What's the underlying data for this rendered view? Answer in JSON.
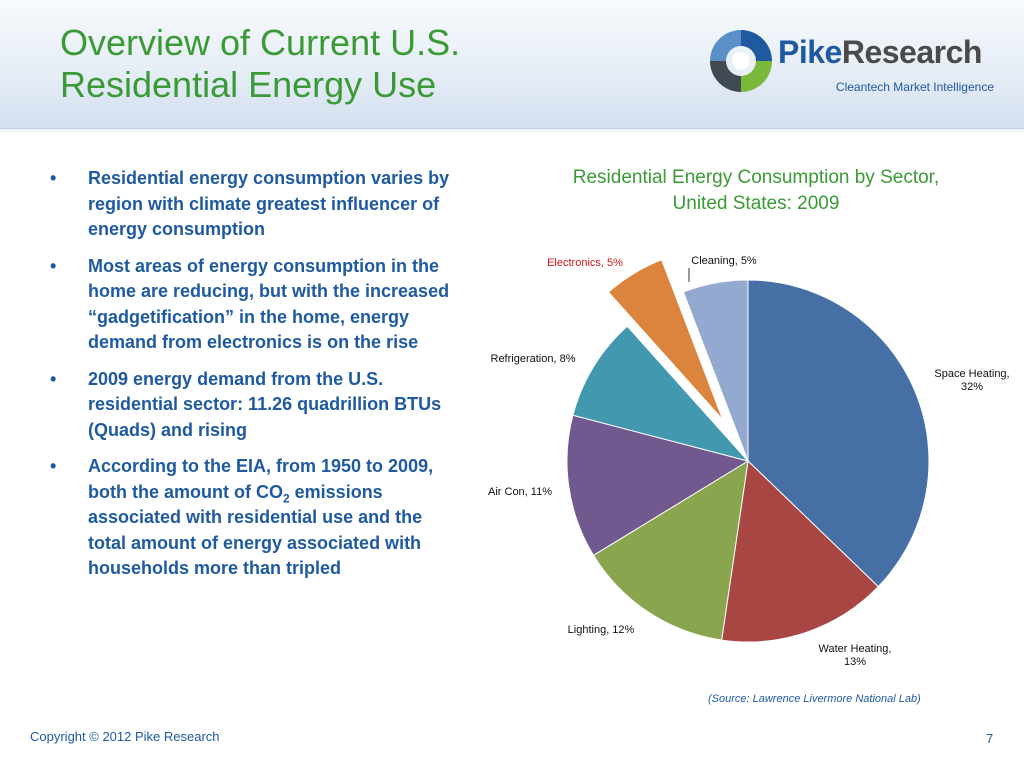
{
  "slide": {
    "title_line1": "Overview of Current U.S.",
    "title_line2": "Residential Energy Use",
    "logo_name_part1": "Pike",
    "logo_name_part2": "Research",
    "logo_tagline": "Cleantech Market Intelligence",
    "copyright": "Copyright © 2012 Pike Research",
    "page_number": "7",
    "source_note": "(Source: Lawrence Livermore National Lab)",
    "colors": {
      "title_green": "#3a9a35",
      "text_blue": "#1f5aa0"
    }
  },
  "bullets": {
    "b1": "Residential energy consumption varies by region with climate greatest influencer of energy consumption",
    "b2": "Most areas of energy consumption in the home are reducing, but with the increased “gadgetification” in the home, energy demand from electronics is on the rise",
    "b3": "2009 energy demand from the U.S. residential sector: 11.26 quadrillion BTUs (Quads) and rising",
    "b4_part1": "According to the EIA, from 1950 to 2009, both the amount of CO",
    "b4_sub": "2",
    "b4_part2": " emissions associated with residential use and the total amount of energy associated with households more than tripled"
  },
  "chart_data": {
    "type": "pie",
    "title_line1": "Residential Energy Consumption by Sector,",
    "title_line2": "United States: 2009",
    "slices": [
      {
        "label": "Space Heating",
        "value": 32,
        "label_text": "Space Heating, 32%",
        "label_lines": [
          "Space Heating,",
          "32%"
        ],
        "color": "#4670a5",
        "exploded": false
      },
      {
        "label": "Water Heating",
        "value": 13,
        "label_text": "Water Heating, 13%",
        "label_lines": [
          "Water Heating,",
          "13%"
        ],
        "color": "#a84644",
        "exploded": false
      },
      {
        "label": "Lighting",
        "value": 12,
        "label_text": "Lighting, 12%",
        "label_lines": [
          "Lighting, 12%"
        ],
        "color": "#89a54e",
        "exploded": false
      },
      {
        "label": "Air Con",
        "value": 11,
        "label_text": "Air Con, 11%",
        "label_lines": [
          "Air Con, 11%"
        ],
        "color": "#71588f",
        "exploded": false
      },
      {
        "label": "Refrigeration",
        "value": 8,
        "label_text": "Refrigeration, 8%",
        "label_lines": [
          "Refrigeration, 8%"
        ],
        "color": "#4198af",
        "exploded": false
      },
      {
        "label": "Electronics",
        "value": 5,
        "label_text": "Electronics, 5%",
        "label_lines": [
          "Electronics, 5%"
        ],
        "color": "#db843d",
        "exploded": true,
        "label_color": "#d0181b"
      },
      {
        "label": "Cleaning",
        "value": 5,
        "label_text": "Cleaning, 5%",
        "label_lines": [
          "Cleaning, 5%"
        ],
        "color": "#93a9cf",
        "exploded": false
      }
    ],
    "start_angle": "12 o'clock",
    "direction": "clockwise",
    "legend": "none",
    "labels": "outside slices, with category and percent"
  }
}
